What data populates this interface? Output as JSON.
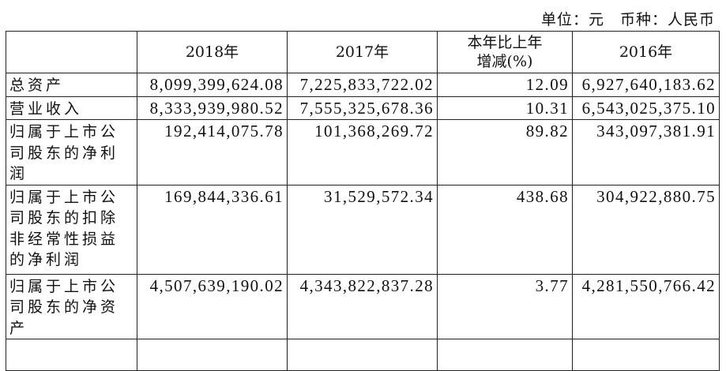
{
  "unit_note": "单位：元　币种：人民币",
  "table": {
    "headers": [
      "",
      "2018年",
      "2017年",
      "本年比上年增减(%)",
      "2016年"
    ],
    "rows": [
      {
        "label": "总资产",
        "values": [
          "8,099,399,624.08",
          "7,225,833,722.02",
          "12.09",
          "6,927,640,183.62"
        ]
      },
      {
        "label": "营业收入",
        "values": [
          "8,333,939,980.52",
          "7,555,325,678.36",
          "10.31",
          "6,543,025,375.10"
        ]
      },
      {
        "label": "归属于上市公司股东的净利润",
        "values": [
          "192,414,075.78",
          "101,368,269.72",
          "89.82",
          "343,097,381.91"
        ]
      },
      {
        "label": "归属于上市公司股东的扣除非经常性损益的净利润",
        "values": [
          "169,844,336.61",
          "31,529,572.34",
          "438.68",
          "304,922,880.75"
        ]
      },
      {
        "label": "归属于上市公司股东的净资产",
        "values": [
          "4,507,639,190.02",
          "4,343,822,837.28",
          "3.77",
          "4,281,550,766.42"
        ]
      }
    ]
  }
}
